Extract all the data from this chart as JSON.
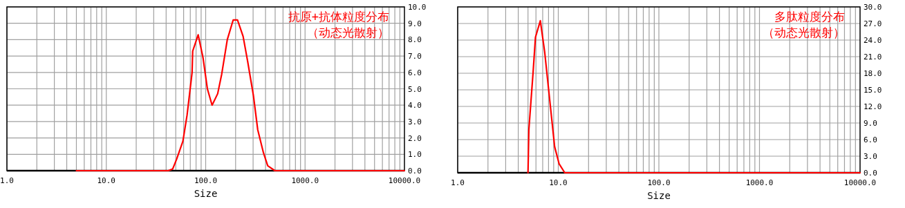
{
  "chart_data": [
    {
      "type": "line",
      "title": "抗原+抗体粒度分布",
      "subtitle": "（动态光散射）",
      "xlabel": "Size",
      "log": "x",
      "grid": true,
      "xlim": [
        1,
        10000
      ],
      "xticks": [
        {
          "value": 1,
          "label": "1.0"
        },
        {
          "value": 10,
          "label": "10.0"
        },
        {
          "value": 100,
          "label": "100.0"
        },
        {
          "value": 1000,
          "label": "1000.0"
        },
        {
          "value": 10000,
          "label": "10000.0"
        }
      ],
      "ylim": [
        0,
        10
      ],
      "yticks": [
        {
          "value": 0,
          "label": "0.0"
        },
        {
          "value": 1,
          "label": "1.0"
        },
        {
          "value": 2,
          "label": "2.0"
        },
        {
          "value": 3,
          "label": "3.0"
        },
        {
          "value": 4,
          "label": "4.0"
        },
        {
          "value": 5,
          "label": "5.0"
        },
        {
          "value": 6,
          "label": "6.0"
        },
        {
          "value": 7,
          "label": "7.0"
        },
        {
          "value": 8,
          "label": "8.0"
        },
        {
          "value": 9,
          "label": "9.0"
        },
        {
          "value": 10,
          "label": "10.0"
        }
      ],
      "series": [
        {
          "color": "#ff0000",
          "x": [
            5,
            42,
            46.5,
            51,
            59,
            65,
            73,
            74,
            84,
            94,
            104,
            116,
            132,
            145,
            165,
            189,
            209,
            238,
            264,
            302,
            334,
            381,
            421,
            497,
            10000
          ],
          "values": [
            0,
            0,
            0.1,
            0.7,
            1.8,
            3.4,
            6.0,
            7.3,
            8.3,
            6.9,
            5.0,
            4.0,
            4.7,
            5.9,
            8.0,
            9.2,
            9.2,
            8.2,
            6.7,
            4.6,
            2.5,
            1.1,
            0.3,
            0,
            0
          ]
        }
      ]
    },
    {
      "type": "line",
      "title": "多肽粒度分布",
      "subtitle": "（动态光散射）",
      "xlabel": "Size",
      "log": "x",
      "grid": true,
      "xlim": [
        1,
        10000
      ],
      "xticks": [
        {
          "value": 1,
          "label": "1.0"
        },
        {
          "value": 10,
          "label": "10.0"
        },
        {
          "value": 100,
          "label": "100.0"
        },
        {
          "value": 1000,
          "label": "1000.0"
        },
        {
          "value": 10000,
          "label": "10000.0"
        }
      ],
      "ylim": [
        0,
        30
      ],
      "yticks": [
        {
          "value": 0,
          "label": "0.0"
        },
        {
          "value": 3,
          "label": "3.0"
        },
        {
          "value": 6,
          "label": "6.0"
        },
        {
          "value": 9,
          "label": "9.0"
        },
        {
          "value": 12,
          "label": "12.0"
        },
        {
          "value": 15,
          "label": "15.0"
        },
        {
          "value": 18,
          "label": "18.0"
        },
        {
          "value": 21,
          "label": "21.0"
        },
        {
          "value": 24,
          "label": "24.0"
        },
        {
          "value": 27,
          "label": "27.0"
        },
        {
          "value": 30,
          "label": "30.0"
        }
      ],
      "series": [
        {
          "color": "#ff0000",
          "x": [
            5,
            5.1,
            5.62,
            5.93,
            6.63,
            7.32,
            8.24,
            9.2,
            10.2,
            11.6,
            10000
          ],
          "values": [
            0,
            7.8,
            18.2,
            24.5,
            27.5,
            21.9,
            13.0,
            4.7,
            1.6,
            0,
            0
          ]
        }
      ]
    }
  ]
}
